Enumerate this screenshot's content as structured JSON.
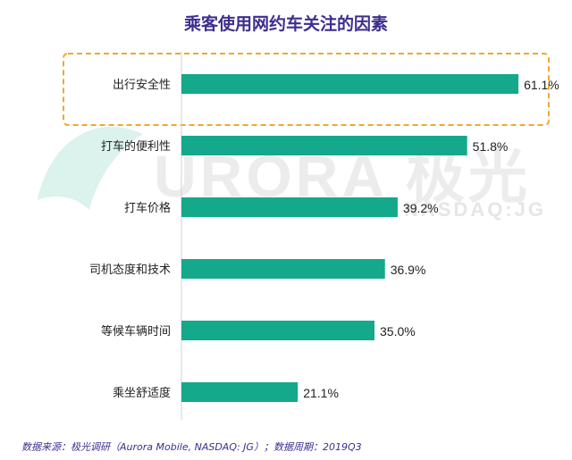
{
  "title": "乘客使用网约车关注的因素",
  "watermark": {
    "brand_text": "URORA 极光",
    "sub_text": "NASDAQ:JG"
  },
  "footer": "数据来源：极光调研（Aurora Mobile, NASDAQ: JG）；数据周期：2019Q3",
  "colors": {
    "bar": "#14a98b",
    "title": "#3d2e8f",
    "highlight_border": "#f0a830",
    "logo_arc": "#cfeee7"
  },
  "chart_data": {
    "type": "bar",
    "orientation": "horizontal",
    "categories": [
      "出行安全性",
      "打车的便利性",
      "打车价格",
      "司机态度和技术",
      "等候车辆时间",
      "乘坐舒适度"
    ],
    "values": [
      61.1,
      51.8,
      39.2,
      36.9,
      35.0,
      21.1
    ],
    "data_labels": [
      "61.1%",
      "51.8%",
      "39.2%",
      "36.9%",
      "35.0%",
      "21.1%"
    ],
    "highlighted_category": "出行安全性",
    "xlim": [
      0,
      70
    ],
    "grid": false,
    "legend": "none"
  }
}
